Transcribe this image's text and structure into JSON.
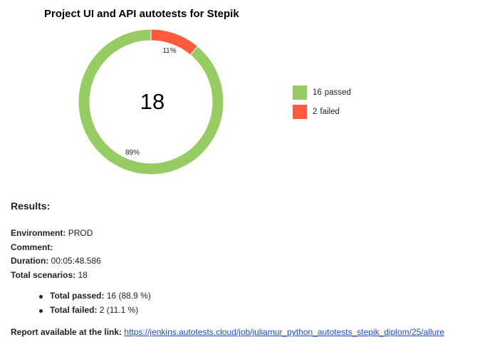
{
  "chart_data": {
    "type": "pie",
    "title": "Project UI and API autotests for Stepik",
    "center_label": "18",
    "series": [
      {
        "name": "passed",
        "value": 16,
        "percent_label": "89%",
        "color": "#97cc64"
      },
      {
        "name": "failed",
        "value": 2,
        "percent_label": "11%",
        "color": "#fd5a3e"
      }
    ],
    "legend": [
      {
        "count": "16",
        "status": "passed",
        "color": "#97cc64"
      },
      {
        "count": "2",
        "status": "failed",
        "color": "#fd5a3e"
      }
    ],
    "legend_placement": "right"
  },
  "results": {
    "heading": "Results:",
    "environment_label": "Environment:",
    "environment_value": "PROD",
    "comment_label": "Comment:",
    "comment_value": "",
    "duration_label": "Duration:",
    "duration_value": "00:05:48.586",
    "scenarios_label": "Total scenarios:",
    "scenarios_value": "18",
    "passed_label": "Total passed:",
    "passed_value": "16 (88.9 %)",
    "failed_label": "Total failed:",
    "failed_value": "2 (11.1 %)",
    "report_label": "Report available at the link:",
    "report_link": "https://jenkins.autotests.cloud/job/juliamur_python_autotests_stepik_diplom/25/allure"
  }
}
